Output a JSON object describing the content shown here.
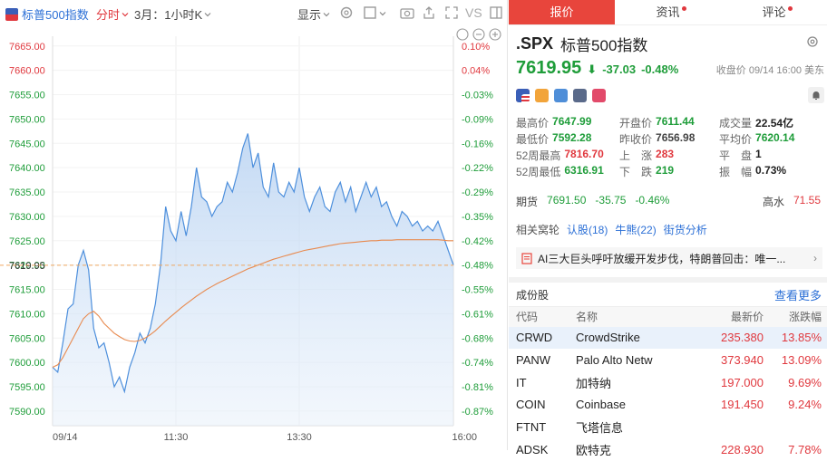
{
  "toolbar": {
    "index_name": "标普500指数",
    "mode": "分时",
    "period": "3月：1小时K",
    "display": "显示",
    "vs": "VS"
  },
  "tabs": [
    {
      "label": "报价",
      "dot": false
    },
    {
      "label": "资讯",
      "dot": true
    },
    {
      "label": "评论",
      "dot": true
    }
  ],
  "quote": {
    "symbol": ".SPX",
    "name": "标普500指数",
    "price": "7619.95",
    "arrow": "⬇",
    "change": "-37.03",
    "change_pct": "-0.48%",
    "close_label": "收盘价 09/14 16:00 美东"
  },
  "stats": {
    "high_label": "最高价",
    "high": "7647.99",
    "open_label": "开盘价",
    "open": "7611.44",
    "volume_label": "成交量",
    "volume": "22.54亿",
    "low_label": "最低价",
    "low": "7592.28",
    "prev_close_label": "昨收价",
    "prev_close": "7656.98",
    "avg_label": "平均价",
    "avg": "7620.14",
    "wk52_high_label": "52周最高",
    "wk52_high": "7816.70",
    "up_label": "上　涨",
    "up": "283",
    "flat_label": "平　盘",
    "flat": "1",
    "wk52_low_label": "52周最低",
    "wk52_low": "6316.91",
    "down_label": "下　跌",
    "down": "219",
    "amplitude_label": "振　幅",
    "amplitude": "0.73%"
  },
  "futures": {
    "label": "期货",
    "price": "7691.50",
    "change": "-35.75",
    "pct": "-0.46%",
    "hs_label": "高水",
    "hs_value": "71.55"
  },
  "related": {
    "label": "相关窝轮",
    "items": [
      "认股(18)",
      "牛熊(22)",
      "街货分析"
    ]
  },
  "news": {
    "text": "AI三大巨头呼吁放缓开发步伐，特朗普回击：唯一..."
  },
  "components": {
    "title": "成份股",
    "more": "查看更多",
    "headers": [
      "代码",
      "名称",
      "最新价",
      "涨跌幅"
    ],
    "rows": [
      {
        "code": "CRWD",
        "name": "CrowdStrike",
        "price": "235.380",
        "pct": "13.85%"
      },
      {
        "code": "PANW",
        "name": "Palo Alto Netw",
        "price": "373.940",
        "pct": "13.09%"
      },
      {
        "code": "IT",
        "name": "加特纳",
        "price": "197.000",
        "pct": "9.69%"
      },
      {
        "code": "COIN",
        "name": "Coinbase",
        "price": "191.450",
        "pct": "9.24%"
      },
      {
        "code": "FTNT",
        "name": "飞塔信息",
        "price": "",
        "pct": ""
      },
      {
        "code": "ADSK",
        "name": "欧特克",
        "price": "228.930",
        "pct": "7.78%"
      }
    ]
  },
  "colors": {
    "up": "#e0383e",
    "down": "#1f9d3a",
    "accent": "#2b6fd6",
    "tab_active": "#e8453c"
  },
  "chart_data": {
    "type": "line",
    "title": "",
    "xlabel": "",
    "ylabel": "",
    "x_ticks": [
      "09/14",
      "11:30",
      "13:30",
      "16:00"
    ],
    "x_tick_minutes": [
      0,
      120,
      240,
      390
    ],
    "y_ticks": [
      "7665.00",
      "7660.00",
      "7655.00",
      "7650.00",
      "7645.00",
      "7640.00",
      "7635.00",
      "7630.00",
      "7625.00",
      "7620.00",
      "7619.95",
      "7615.00",
      "7610.00",
      "7605.00",
      "7600.00",
      "7595.00",
      "7590.00"
    ],
    "pct_ticks": [
      "0.10%",
      "0.04%",
      "-0.03%",
      "-0.09%",
      "-0.16%",
      "-0.22%",
      "-0.29%",
      "-0.35%",
      "-0.42%",
      "-0.48%",
      "-0.55%",
      "-0.61%",
      "-0.68%",
      "-0.74%",
      "-0.81%",
      "-0.87%"
    ],
    "ylim": [
      7587,
      7667
    ],
    "xlim": [
      0,
      390
    ],
    "current": 7619.95,
    "series": [
      {
        "x": [
          0,
          5,
          10,
          15,
          20,
          25,
          30,
          35,
          40,
          45,
          50,
          55,
          60,
          65,
          70,
          75,
          80,
          85,
          90,
          95,
          100,
          105,
          110,
          115,
          120,
          125,
          130,
          135,
          140,
          145,
          150,
          155,
          160,
          165,
          170,
          175,
          180,
          185,
          190,
          195,
          200,
          205,
          210,
          215,
          220,
          225,
          230,
          235,
          240,
          245,
          250,
          255,
          260,
          265,
          270,
          275,
          280,
          285,
          290,
          295,
          300,
          305,
          310,
          315,
          320,
          325,
          330,
          335,
          340,
          345,
          350,
          355,
          360,
          365,
          370,
          375,
          380,
          385,
          390
        ],
        "y": [
          7599,
          7598,
          7604,
          7611,
          7612,
          7620,
          7623,
          7619,
          7607,
          7603,
          7604,
          7600,
          7595,
          7597,
          7594,
          7599,
          7602,
          7606,
          7604,
          7607,
          7612,
          7620,
          7632,
          7627,
          7625,
          7631,
          7626,
          7632,
          7640,
          7634,
          7633,
          7630,
          7632,
          7633,
          7637,
          7635,
          7639,
          7644,
          7647,
          7640,
          7643,
          7636,
          7634,
          7641,
          7635,
          7634,
          7637,
          7635,
          7640,
          7634,
          7631,
          7634,
          7636,
          7632,
          7631,
          7635,
          7637,
          7633,
          7636,
          7631,
          7634,
          7637,
          7634,
          7636,
          7632,
          7633,
          7630,
          7628,
          7631,
          7630,
          7628,
          7629,
          7627,
          7628,
          7627,
          7629,
          7626,
          7623,
          7620
        ]
      },
      {
        "x": [
          0,
          5,
          10,
          15,
          20,
          25,
          30,
          35,
          40,
          45,
          50,
          55,
          60,
          65,
          70,
          75,
          80,
          85,
          90,
          95,
          100,
          105,
          110,
          115,
          120,
          125,
          130,
          135,
          140,
          145,
          150,
          155,
          160,
          165,
          170,
          175,
          180,
          185,
          190,
          195,
          200,
          205,
          210,
          215,
          220,
          225,
          230,
          235,
          240,
          245,
          250,
          255,
          260,
          265,
          270,
          275,
          280,
          285,
          290,
          295,
          300,
          305,
          310,
          315,
          320,
          325,
          330,
          335,
          340,
          345,
          350,
          355,
          360,
          365,
          370,
          375,
          380,
          385,
          390
        ],
        "y": [
          7599,
          7599.5,
          7601,
          7603,
          7605,
          7607,
          7609,
          7610,
          7610.5,
          7609.5,
          7608,
          7607,
          7606,
          7605.3,
          7604.7,
          7604.4,
          7604.3,
          7604.5,
          7605,
          7605.7,
          7606.5,
          7607.5,
          7608.5,
          7609.4,
          7610.3,
          7611.2,
          7612,
          7612.8,
          7613.6,
          7614.3,
          7615,
          7615.6,
          7616.2,
          7616.7,
          7617.2,
          7617.7,
          7618.2,
          7618.7,
          7619.2,
          7619.6,
          7620,
          7620.4,
          7620.8,
          7621.2,
          7621.5,
          7621.8,
          7622.1,
          7622.4,
          7622.7,
          7623,
          7623.2,
          7623.4,
          7623.6,
          7623.8,
          7624,
          7624.2,
          7624.4,
          7624.5,
          7624.6,
          7624.7,
          7624.8,
          7624.9,
          7625,
          7625,
          7625.1,
          7625.1,
          7625.1,
          7625.2,
          7625.2,
          7625.2,
          7625.2,
          7625.2,
          7625.2,
          7625.2,
          7625.2,
          7625.2,
          7625.1,
          7625,
          7625
        ]
      }
    ]
  }
}
